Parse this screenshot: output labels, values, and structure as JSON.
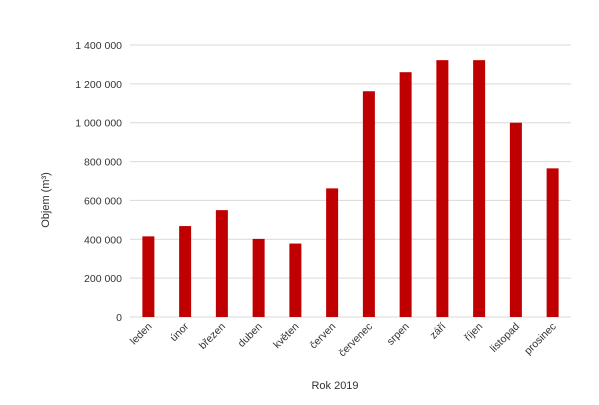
{
  "chart_data": {
    "type": "bar",
    "title": "",
    "xlabel": "Rok 2019",
    "ylabel": "Objem (m³)",
    "categories": [
      "leden",
      "únor",
      "březen",
      "duben",
      "květen",
      "červen",
      "červenec",
      "srpen",
      "září",
      "říjen",
      "listopad",
      "prosinec"
    ],
    "values": [
      415000,
      468000,
      550000,
      402000,
      378000,
      662000,
      1162000,
      1260000,
      1322000,
      1322000,
      1000000,
      765000
    ],
    "ylim": [
      0,
      1400000
    ],
    "yticks": [
      0,
      200000,
      400000,
      600000,
      800000,
      1000000,
      1200000,
      1400000
    ],
    "ytick_labels": [
      "0",
      "200 000",
      "400 000",
      "600 000",
      "800 000",
      "1 000 000",
      "1 200 000",
      "1 400 000"
    ],
    "grid": true,
    "legend": "none",
    "bar_color": "#c00000",
    "grid_color": "#d9d9d9"
  }
}
